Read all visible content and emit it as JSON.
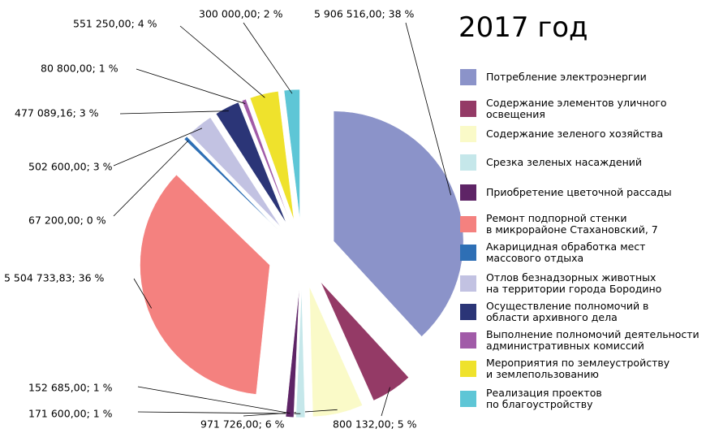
{
  "chart_data": {
    "type": "pie",
    "title": "2017 год",
    "categories": [
      "Потребление электроэнергии",
      "Содержание элементов уличного\nосвещения",
      "Содержание зеленого хозяйства",
      "Срезка зеленых насаждений",
      "Приобретение цветочной рассады",
      "Ремонт подпорной стенки\nв микрорайоне Стахановский, 7",
      "Акарицидная обработка мест\nмассового отдыха",
      "Отлов безнадзорных животных\nна территории города Бородино",
      "Осуществление полномочий в\nобласти архивного дела",
      "Выполнение полномочий деятельности\nадминистративных комиссий",
      "Мероприятия по землеустройству\nи землепользованию",
      "Реализация проектов\nпо благоустройству"
    ],
    "values": [
      5906516,
      800132,
      971726,
      171600,
      152685,
      5504733.83,
      67200,
      502600,
      477089.16,
      80800,
      551250,
      300000
    ],
    "value_labels": [
      "5 906 516,00; 38 %",
      "800 132,00; 5 %",
      "971 726,00; 6 %",
      "171 600,00; 1 %",
      "152 685,00; 1 %",
      "5 504 733,83; 36 %",
      "67 200,00; 0 %",
      "502 600,00; 3 %",
      "477 089,16; 3 %",
      "80 800,00; 1 %",
      "551 250,00; 4 %",
      "300 000,00; 2 %"
    ],
    "colors": [
      "#8b93c9",
      "#943a66",
      "#fafac8",
      "#c5e7ea",
      "#5e2466",
      "#f4817f",
      "#2e6fb5",
      "#c2c2e2",
      "#2b3577",
      "#a15ba8",
      "#efe22c",
      "#5ec6d6"
    ]
  }
}
